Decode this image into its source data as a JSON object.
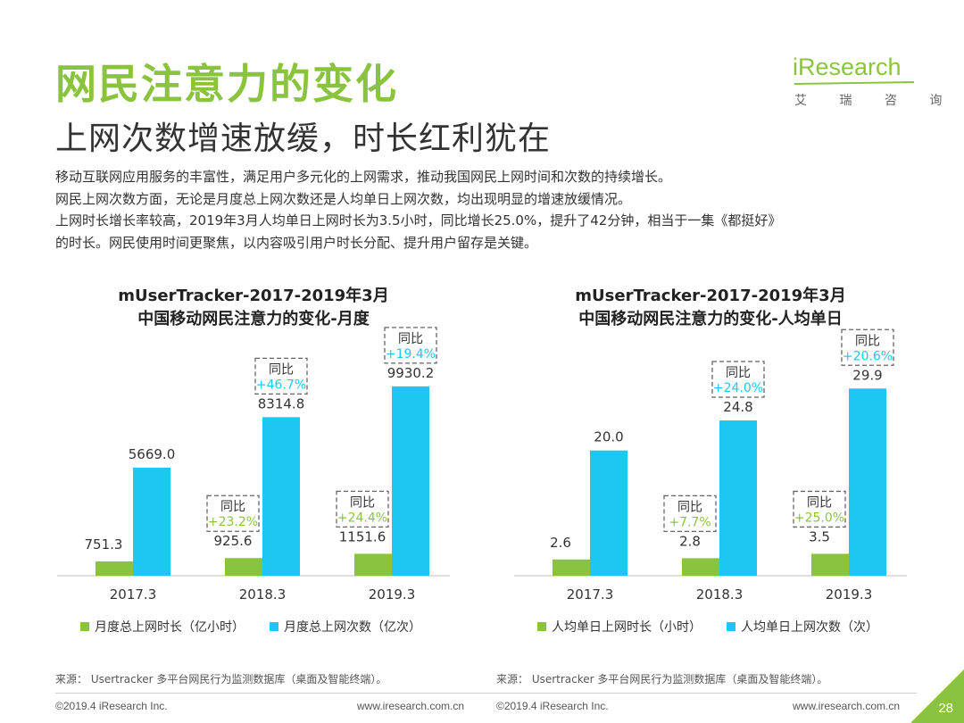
{
  "title": "网民注意力的变化",
  "subtitle": "上网次数增速放缓，时长红利犹在",
  "logo": {
    "brand": "iResearch",
    "cn": "艾 瑞 咨 询"
  },
  "description": [
    "移动互联网应用服务的丰富性，满足用户多元化的上网需求，推动我国网民上网时间和次数的持续增长。",
    "网民上网次数方面，无论是月度总上网次数还是人均单日上网次数，均出现明显的增速放缓情况。",
    "上网时长增长率较高，2019年3月人均单日上网时长为3.5小时，同比增长25.0%，提升了42分钟，相当于一集《都挺好》",
    "的时长。网民使用时间更聚焦，以内容吸引用户时长分配、提升用户留存是关键。"
  ],
  "colors": {
    "green": "#8ac43f",
    "blue": "#1ec7f2",
    "yoy_green": "#8ac43f",
    "yoy_blue": "#1ec7f2"
  },
  "chart_data": [
    {
      "type": "bar",
      "title": "mUserTracker-2017-2019年3月",
      "subtitle": "中国移动网民注意力的变化-月度",
      "categories": [
        "2017.3",
        "2018.3",
        "2019.3"
      ],
      "series": [
        {
          "name": "月度总上网时长（亿小时）",
          "values": [
            751.3,
            925.6,
            1151.6
          ],
          "labels": [
            "751.3",
            "925.6",
            "1151.6"
          ],
          "yoy": [
            "",
            "+23.2%",
            "+24.4%"
          ]
        },
        {
          "name": "月度总上网次数（亿次）",
          "values": [
            5669.0,
            8314.8,
            9930.2
          ],
          "labels": [
            "5669.0",
            "8314.8",
            "9930.2"
          ],
          "yoy": [
            "",
            "+46.7%",
            "+19.4%"
          ]
        }
      ],
      "yoy_label": "同比",
      "ylim": [
        0,
        11000
      ],
      "source": "来源：  Usertracker 多平台网民行为监测数据库（桌面及智能终端）。"
    },
    {
      "type": "bar",
      "title": "mUserTracker-2017-2019年3月",
      "subtitle": "中国移动网民注意力的变化-人均单日",
      "categories": [
        "2017.3",
        "2018.3",
        "2019.3"
      ],
      "series": [
        {
          "name": "人均单日上网时长（小时）",
          "values": [
            2.6,
            2.8,
            3.5
          ],
          "labels": [
            "2.6",
            "2.8",
            "3.5"
          ],
          "yoy": [
            "",
            "+7.7%",
            "+25.0%"
          ]
        },
        {
          "name": "人均单日上网次数（次）",
          "values": [
            20.0,
            24.8,
            29.9
          ],
          "labels": [
            "20.0",
            "24.8",
            "29.9"
          ],
          "yoy": [
            "",
            "+24.0%",
            "+20.6%"
          ]
        }
      ],
      "yoy_label": "同比",
      "ylim": [
        0,
        33.5
      ],
      "source": "来源：  Usertracker 多平台网民行为监测数据库（桌面及智能终端）。"
    }
  ],
  "footer": {
    "left_copyright": "©2019.4 iResearch Inc.",
    "left_url": "www.iresearch.com.cn",
    "right_copyright": "©2019.4 iResearch Inc.",
    "right_url": "www.iresearch.com.cn",
    "page": "28"
  }
}
